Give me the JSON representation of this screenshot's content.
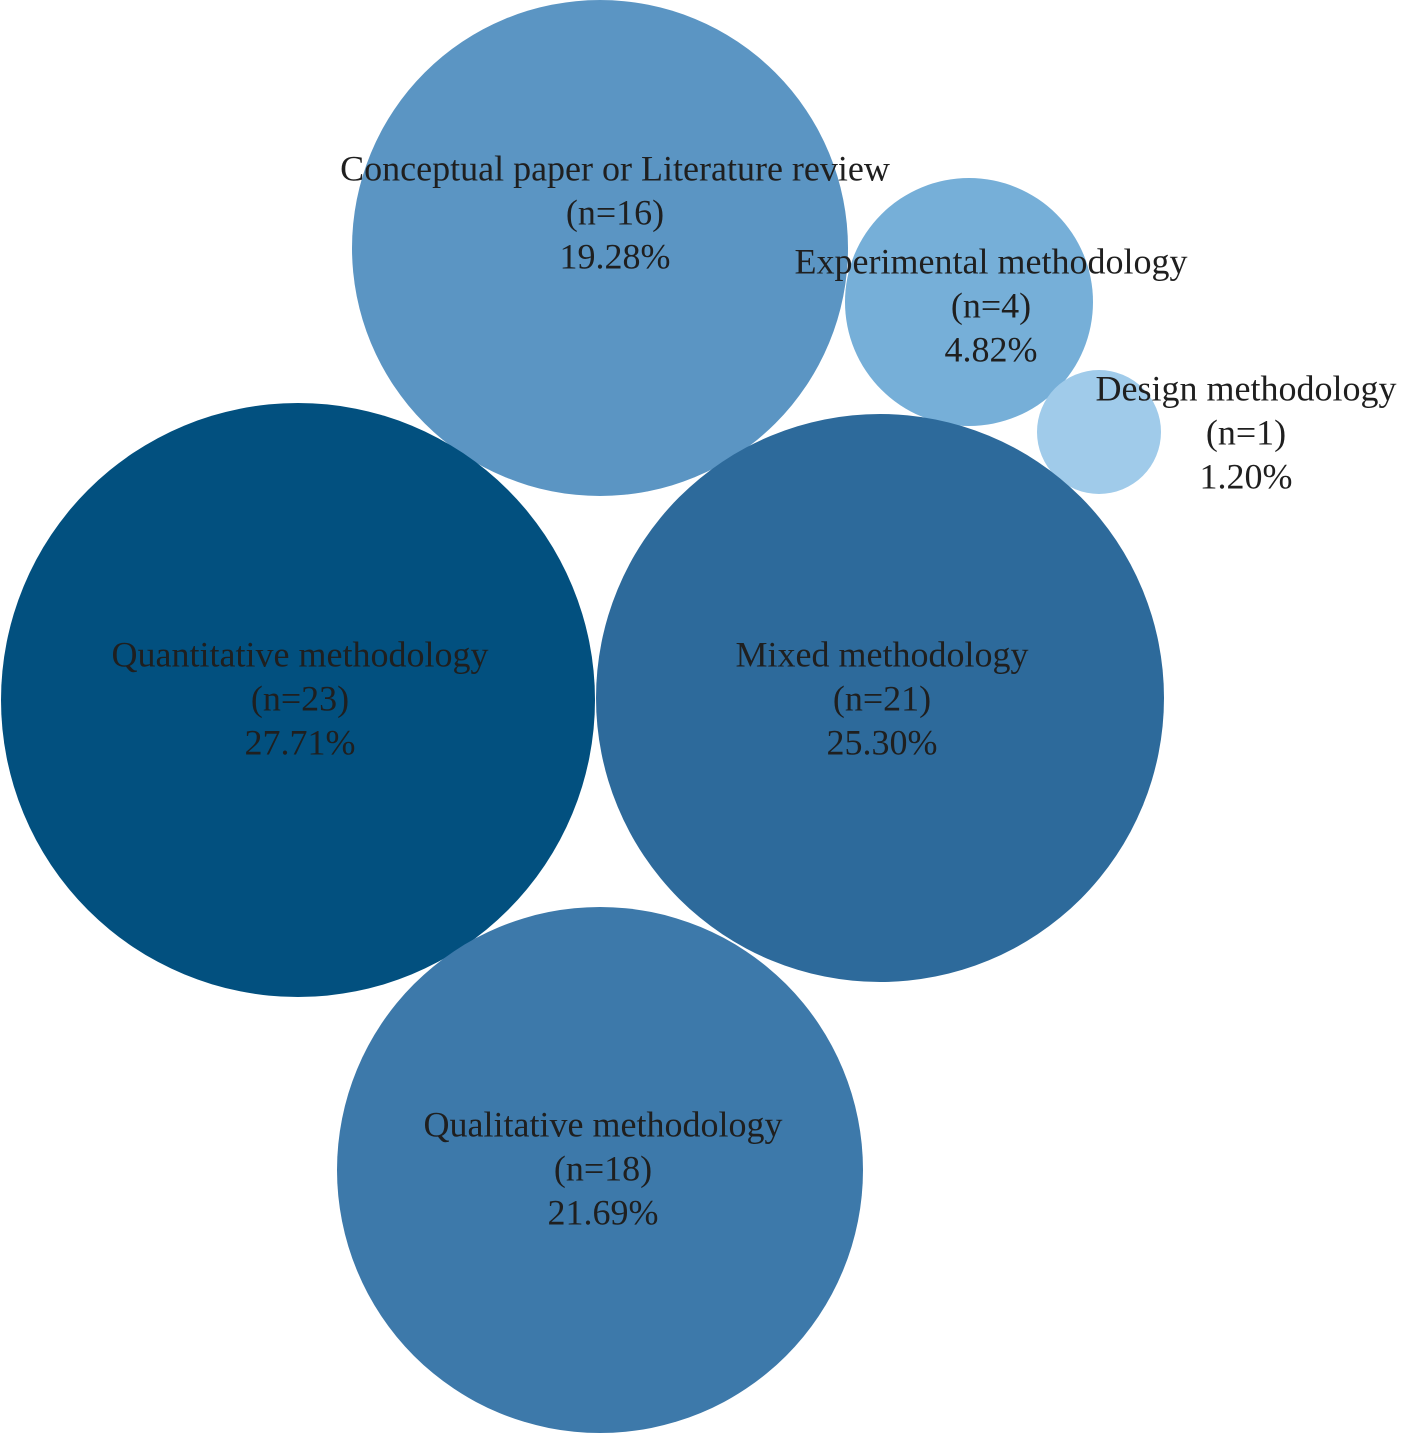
{
  "chart_data": {
    "type": "bubble",
    "items": [
      {
        "label": "Conceptual paper or Literature review",
        "n": 16,
        "n_text": "(n=16)",
        "percent": 19.28,
        "percent_text": "19.28%",
        "color": "#5b95c3"
      },
      {
        "label": "Experimental methodology",
        "n": 4,
        "n_text": "(n=4)",
        "percent": 4.82,
        "percent_text": "4.82%",
        "color": "#76afd8"
      },
      {
        "label": "Design methodology",
        "n": 1,
        "n_text": "(n=1)",
        "percent": 1.2,
        "percent_text": "1.20%",
        "color": "#a0cbea"
      },
      {
        "label": "Quantitative methodology",
        "n": 23,
        "n_text": "(n=23)",
        "percent": 27.71,
        "percent_text": "27.71%",
        "color": "#02507f"
      },
      {
        "label": "Mixed methodology",
        "n": 21,
        "n_text": "(n=21)",
        "percent": 25.3,
        "percent_text": "25.30%",
        "color": "#2d6a9b"
      },
      {
        "label": "Qualitative methodology",
        "n": 18,
        "n_text": "(n=18)",
        "percent": 21.69,
        "percent_text": "21.69%",
        "color": "#3d79aa"
      }
    ]
  }
}
